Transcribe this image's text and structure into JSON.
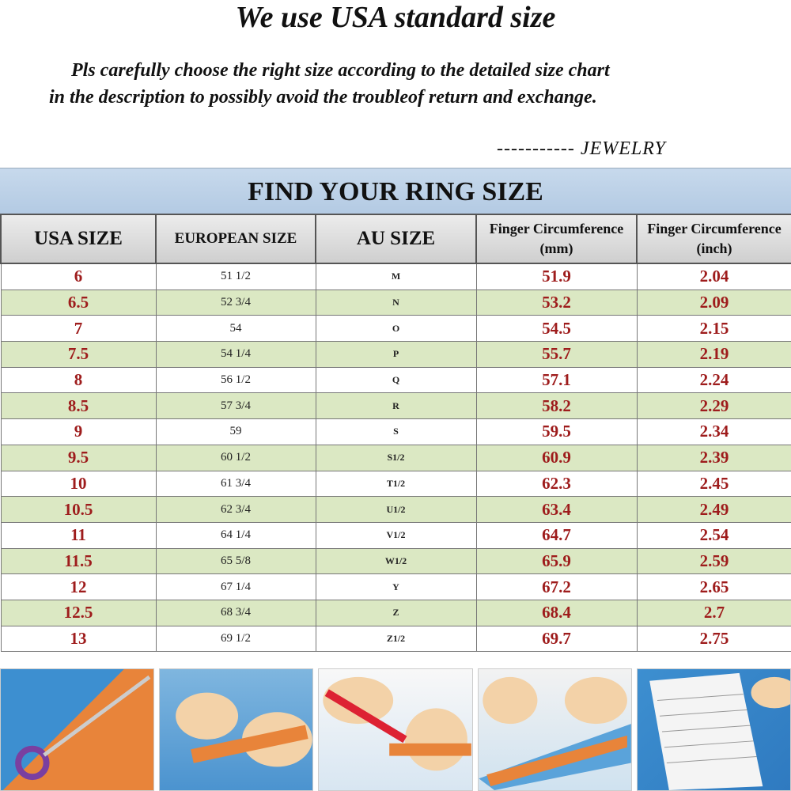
{
  "heading": "We use USA standard size",
  "notice_line1": "Pls carefully choose the right size according to the detailed size chart",
  "notice_line2": "in the description to possibly avoid the troubleof return and exchange.",
  "brand": "-----------   JEWELRY",
  "table_title": "FIND YOUR RING SIZE",
  "columns": [
    "USA SIZE",
    "EUROPEAN SIZE",
    "AU SIZE",
    "Finger Circumference (mm)",
    "Finger Circumference (inch)"
  ],
  "rows": [
    [
      "6",
      "51  1/2",
      "M",
      "51.9",
      "2.04"
    ],
    [
      "6.5",
      "52 3/4",
      "N",
      "53.2",
      "2.09"
    ],
    [
      "7",
      "54",
      "O",
      "54.5",
      "2.15"
    ],
    [
      "7.5",
      "54 1/4",
      "P",
      "55.7",
      "2.19"
    ],
    [
      "8",
      "56 1/2",
      "Q",
      "57.1",
      "2.24"
    ],
    [
      "8.5",
      "57 3/4",
      "R",
      "58.2",
      "2.29"
    ],
    [
      "9",
      "59",
      "S",
      "59.5",
      "2.34"
    ],
    [
      "9.5",
      "60 1/2",
      "S1/2",
      "60.9",
      "2.39"
    ],
    [
      "10",
      "61 3/4",
      "T1/2",
      "62.3",
      "2.45"
    ],
    [
      "10.5",
      "62 3/4",
      "U1/2",
      "63.4",
      "2.49"
    ],
    [
      "11",
      "64 1/4",
      "V1/2",
      "64.7",
      "2.54"
    ],
    [
      "11.5",
      "65 5/8",
      "W1/2",
      "65.9",
      "2.59"
    ],
    [
      "12",
      "67 1/4",
      "Y",
      "67.2",
      "2.65"
    ],
    [
      "12.5",
      "68 3/4",
      "Z",
      "68.4",
      "2.7"
    ],
    [
      "13",
      "69 1/2",
      "Z1/2",
      "69.7",
      "2.75"
    ]
  ],
  "colors": {
    "title_band": "#b8cfe6",
    "alt_row": "#dbe8c3",
    "value_text": "#9e1c1c"
  },
  "photos": [
    "cut-paper-strip",
    "wrap-strip-around-finger",
    "mark-strip-with-pen",
    "measure-strip-with-ruler",
    "compare-with-size-chart"
  ]
}
